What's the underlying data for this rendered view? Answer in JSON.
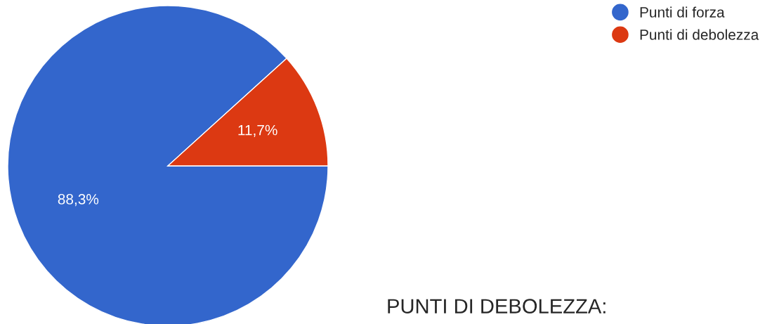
{
  "chart_data": {
    "type": "pie",
    "categories": [
      "Punti di forza",
      "Punti di debolezza"
    ],
    "values": [
      88.3,
      11.7
    ],
    "colors": [
      "#3366cc",
      "#dc3912"
    ],
    "value_labels": [
      "88,3%",
      "11,7%"
    ],
    "legend": "top right",
    "annotations": [
      "PUNTI DI DEBOLEZZA:"
    ]
  }
}
